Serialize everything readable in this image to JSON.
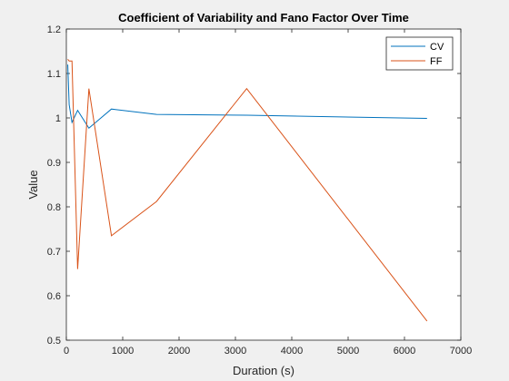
{
  "chart_data": {
    "type": "line",
    "title": "Coefficient of Variability and Fano Factor Over Time",
    "xlabel": "Duration (s)",
    "ylabel": "Value",
    "xlim": [
      0,
      7000
    ],
    "ylim": [
      0.5,
      1.2
    ],
    "xticks": [
      0,
      1000,
      2000,
      3000,
      4000,
      5000,
      6000,
      7000
    ],
    "yticks": [
      0.5,
      0.6,
      0.7,
      0.8,
      0.9,
      1,
      1.1,
      1.2
    ],
    "xtick_labels": [
      "0",
      "1000",
      "2000",
      "3000",
      "4000",
      "5000",
      "6000",
      "7000"
    ],
    "ytick_labels": [
      "0.5",
      "0.6",
      "0.7",
      "0.8",
      "0.9",
      "1",
      "1.1",
      "1.2"
    ],
    "grid": false,
    "legend_position": "top-right",
    "series": [
      {
        "name": "CV",
        "color": "#0072bd",
        "x": [
          25,
          50,
          100,
          200,
          400,
          800,
          1600,
          3200,
          6400
        ],
        "y": [
          1.12,
          1.03,
          0.99,
          1.017,
          0.977,
          1.02,
          1.008,
          1.006,
          0.999
        ]
      },
      {
        "name": "FF",
        "color": "#d95319",
        "x": [
          25,
          50,
          100,
          200,
          400,
          800,
          1600,
          3200,
          6400
        ],
        "y": [
          1.132,
          1.128,
          1.128,
          0.66,
          1.066,
          0.735,
          0.812,
          1.066,
          0.543
        ]
      }
    ]
  }
}
